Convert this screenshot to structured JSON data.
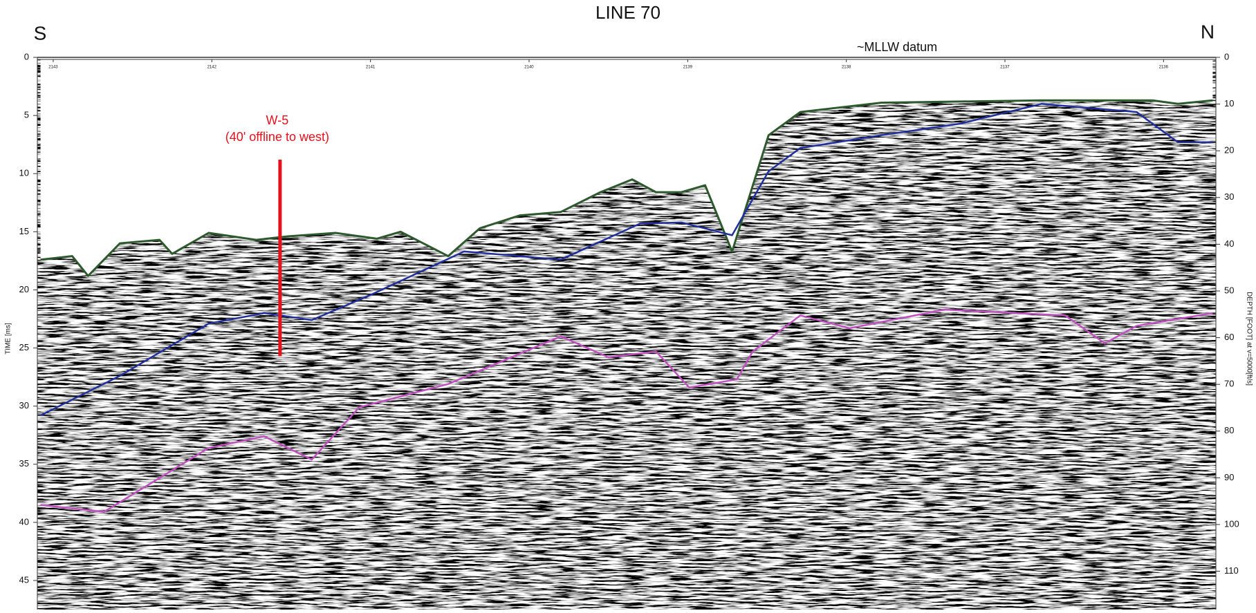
{
  "chart_data": {
    "type": "line",
    "title": "LINE 70",
    "left_label": "S",
    "right_label": "N",
    "datum_label": "~MLLW datum",
    "ylabel": "TIME [ms]",
    "y2label": "DEPTH [FOOT] at v=5000[ft/s]",
    "xlim": [
      2143.1,
      2135.67
    ],
    "xticks": [
      2143,
      2142,
      2141,
      2140,
      2139,
      2138,
      2137,
      2136
    ],
    "ylim": [
      0,
      47.5
    ],
    "yticks": [
      0,
      5,
      10,
      15,
      20,
      25,
      30,
      35,
      40,
      45
    ],
    "y2lim": [
      0,
      118.2
    ],
    "y2ticks": [
      0,
      10,
      20,
      30,
      40,
      50,
      60,
      70,
      80,
      90,
      100,
      110
    ],
    "series": [
      {
        "color": "#2d5a2d",
        "x": [
          2143.08,
          2142.88,
          2142.78,
          2142.58,
          2142.33,
          2142.25,
          2142.02,
          2141.72,
          2141.52,
          2141.22,
          2140.96,
          2140.81,
          2140.51,
          2140.31,
          2140.06,
          2139.8,
          2139.55,
          2139.35,
          2139.2,
          2139.04,
          2138.89,
          2138.72,
          2138.49,
          2138.29,
          2137.78,
          2136.77,
          2136.07,
          2135.91,
          2135.69
        ],
        "values": [
          17.4,
          17.1,
          18.8,
          16.0,
          15.7,
          16.9,
          15.1,
          15.7,
          15.4,
          15.1,
          15.6,
          15.0,
          17.1,
          14.7,
          13.6,
          13.3,
          11.6,
          10.5,
          11.6,
          11.6,
          11.0,
          16.7,
          6.7,
          4.7,
          3.9,
          3.7,
          3.7,
          4.0,
          3.7
        ]
      },
      {
        "color": "#1f2f9e",
        "x": [
          2143.08,
          2142.58,
          2142.02,
          2141.67,
          2141.37,
          2141.01,
          2140.41,
          2139.8,
          2139.3,
          2139.04,
          2138.72,
          2138.49,
          2138.29,
          2137.78,
          2137.28,
          2136.77,
          2136.17,
          2135.91,
          2135.69
        ],
        "values": [
          30.8,
          27.4,
          22.9,
          22.0,
          22.6,
          20.5,
          16.7,
          17.4,
          14.3,
          14.2,
          15.3,
          9.8,
          7.8,
          6.7,
          5.7,
          4.0,
          4.7,
          7.3,
          7.3
        ]
      },
      {
        "color": "#c050c0",
        "x": [
          2143.08,
          2142.68,
          2142.02,
          2141.67,
          2141.37,
          2141.07,
          2140.51,
          2139.8,
          2139.5,
          2139.2,
          2138.99,
          2138.69,
          2138.59,
          2138.29,
          2137.98,
          2137.38,
          2136.62,
          2136.37,
          2136.17,
          2135.69
        ],
        "values": [
          38.5,
          39.1,
          33.6,
          32.6,
          34.6,
          30.1,
          28.1,
          24.0,
          25.8,
          25.3,
          28.4,
          27.7,
          25.3,
          22.2,
          23.3,
          21.7,
          22.2,
          24.6,
          23.1,
          22.0
        ]
      }
    ],
    "annotation": {
      "texts": [
        "W-5",
        "(40' offline to west)"
      ],
      "color": "#e8101a",
      "x": 2141.57,
      "y": [
        8.8,
        25.7
      ]
    }
  }
}
